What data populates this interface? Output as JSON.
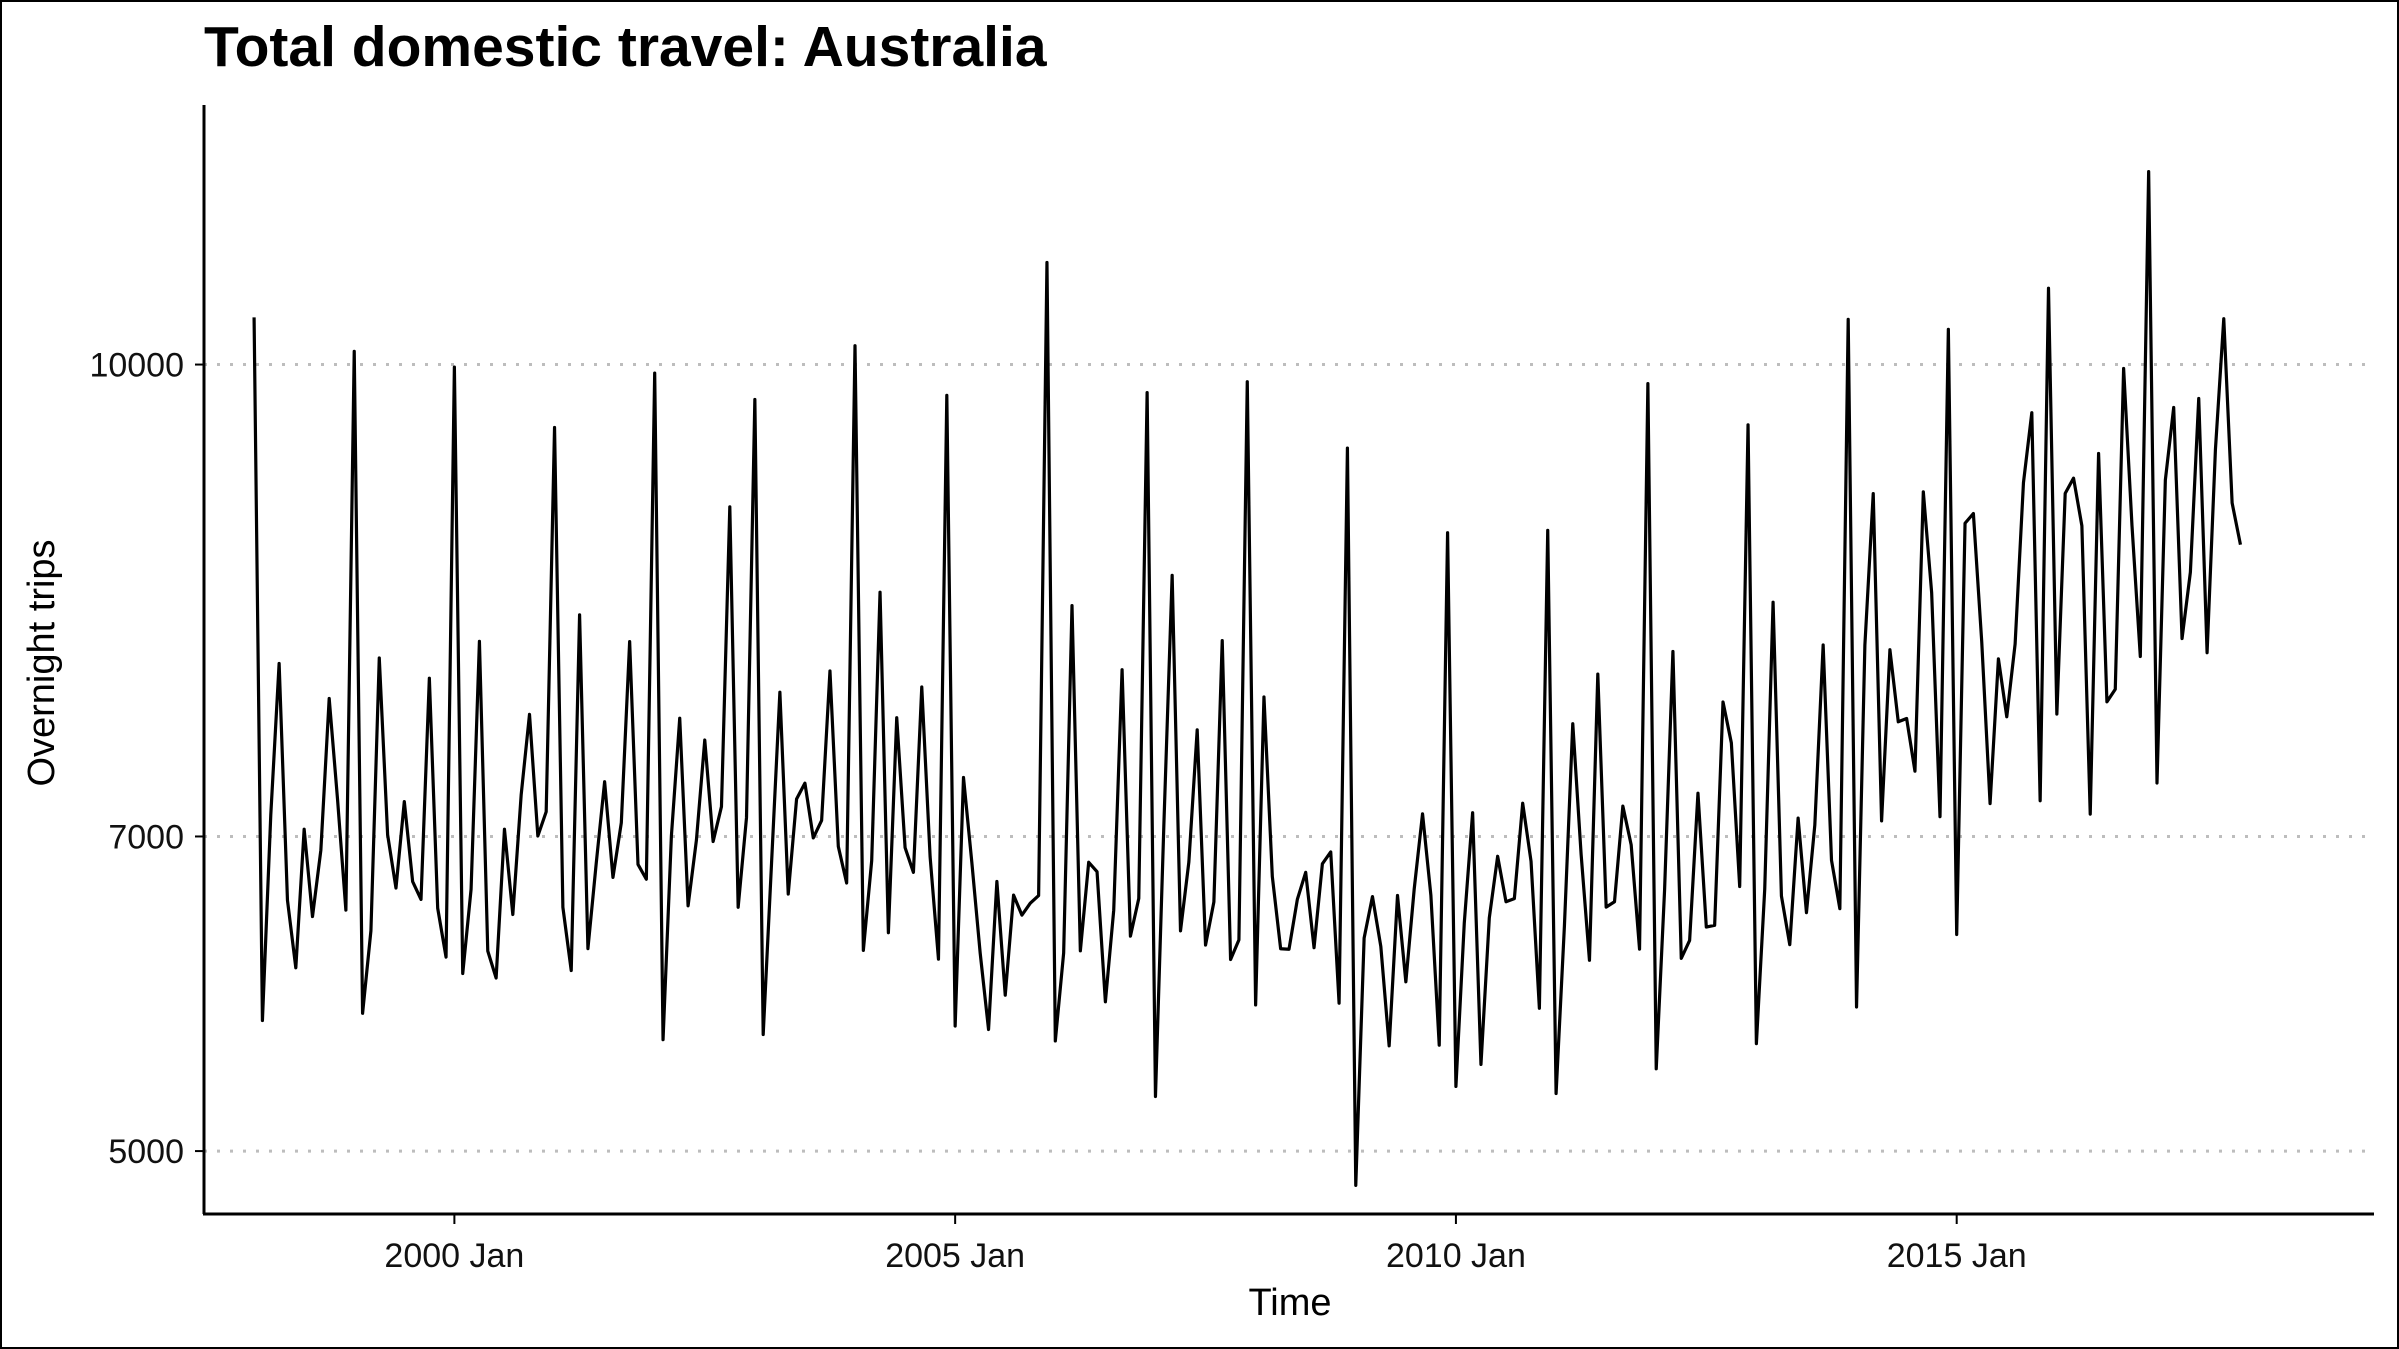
{
  "chart_data": {
    "type": "line",
    "title": "Total domestic travel: Australia",
    "xlabel": "Time",
    "ylabel": "Overnight trips",
    "x_tick_labels": [
      "2000 Jan",
      "2005 Jan",
      "2010 Jan",
      "2015 Jan"
    ],
    "y_tick_labels": [
      "5000",
      "7000",
      "10000"
    ],
    "y_ticks": [
      5000,
      7000,
      10000
    ],
    "xlim": [
      "1997-07",
      "2019-03"
    ],
    "ylim": [
      4600,
      11650
    ],
    "grid": "horizontal dotted at y ticks",
    "line_color": "#000000",
    "grid_color": "#bdbdbd",
    "x_start": "1998-01",
    "frequency": "monthly",
    "series": [
      {
        "values": [
          10300,
          5830,
          7135,
          8100,
          6595,
          6165,
          7046,
          6491,
          6913,
          7877,
          7236,
          6532,
          10084,
          5876,
          6401,
          8135,
          7011,
          6672,
          7222,
          6713,
          6600,
          8006,
          6544,
          6233,
          9984,
          6129,
          6665,
          8240,
          6272,
          6100,
          7046,
          6504,
          7263,
          7776,
          7003,
          7157,
          9600,
          6550,
          6148,
          8409,
          6287,
          6832,
          7348,
          6740,
          7087,
          8239,
          6822,
          6728,
          9946,
          5708,
          7002,
          7752,
          6559,
          6977,
          7613,
          6968,
          7190,
          9095,
          6550,
          7120,
          9778,
          5741,
          6830,
          7917,
          6634,
          7238,
          7339,
          6991,
          7102,
          8052,
          6936,
          6704,
          10120,
          6276,
          6846,
          8553,
          6388,
          7755,
          6929,
          6772,
          7950,
          6870,
          6220,
          9804,
          5795,
          7375,
          6834,
          6258,
          5773,
          6714,
          5991,
          6627,
          6500,
          6576,
          6624,
          10649,
          5700,
          6259,
          8468,
          6273,
          6836,
          6776,
          5949,
          6532,
          8060,
          6366,
          6606,
          9822,
          5347,
          7063,
          8660,
          6400,
          6837,
          7678,
          6310,
          6584,
          8245,
          6218,
          6343,
          9891,
          5929,
          7887,
          6746,
          6286,
          6283,
          6600,
          6772,
          6293,
          6826,
          6902,
          5940,
          9469,
          4782,
          6354,
          6618,
          6301,
          5669,
          6625,
          6076,
          6665,
          7144,
          6626,
          5673,
          8931,
          5411,
          6449,
          7151,
          5551,
          6483,
          6874,
          6585,
          6605,
          7211,
          6842,
          5908,
          8946,
          5366,
          6432,
          7717,
          6886,
          6213,
          8032,
          6551,
          6585,
          7193,
          6946,
          6284,
          9879,
          5523,
          6660,
          8176,
          6225,
          6339,
          7275,
          6424,
          6435,
          7855,
          7595,
          6682,
          9617,
          5683,
          6665,
          8489,
          6622,
          6312,
          7117,
          6516,
          7072,
          8217,
          6849,
          6541,
          10287,
          5916,
          8216,
          9180,
          7099,
          8187,
          7729,
          7750,
          7415,
          9191,
          8550,
          7126,
          10224,
          6377,
          8991,
          9053,
          8238,
          7209,
          8129,
          7761,
          8224,
          9249,
          9694,
          7227,
          10485,
          7778,
          9181,
          9278,
          8975,
          7142,
          9435,
          7856,
          7936,
          9975,
          8979,
          8144,
          11227,
          7340,
          9266,
          9727,
          8258,
          8680,
          9784,
          8168,
          9459,
          10291,
          9120,
          8855
        ]
      }
    ]
  }
}
